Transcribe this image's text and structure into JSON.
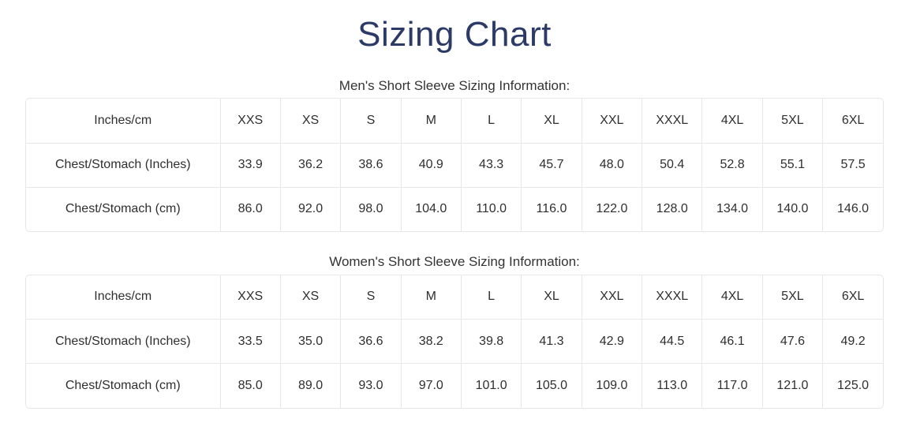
{
  "page": {
    "title": "Sizing Chart"
  },
  "colors": {
    "title_navy": "#2c3a67",
    "table_border": "#e7e7e7",
    "body_text": "#2f2f2f",
    "background": "#ffffff"
  },
  "tables": [
    {
      "caption": "Men's Short Sleeve Sizing Information:",
      "header": [
        "Inches/cm",
        "XXS",
        "XS",
        "S",
        "M",
        "L",
        "XL",
        "XXL",
        "XXXL",
        "4XL",
        "5XL",
        "6XL"
      ],
      "rows": [
        {
          "label": "Chest/Stomach (Inches)",
          "values": [
            "33.9",
            "36.2",
            "38.6",
            "40.9",
            "43.3",
            "45.7",
            "48.0",
            "50.4",
            "52.8",
            "55.1",
            "57.5"
          ]
        },
        {
          "label": "Chest/Stomach (cm)",
          "values": [
            "86.0",
            "92.0",
            "98.0",
            "104.0",
            "110.0",
            "116.0",
            "122.0",
            "128.0",
            "134.0",
            "140.0",
            "146.0"
          ]
        }
      ]
    },
    {
      "caption": "Women's Short Sleeve Sizing Information:",
      "header": [
        "Inches/cm",
        "XXS",
        "XS",
        "S",
        "M",
        "L",
        "XL",
        "XXL",
        "XXXL",
        "4XL",
        "5XL",
        "6XL"
      ],
      "rows": [
        {
          "label": "Chest/Stomach (Inches)",
          "values": [
            "33.5",
            "35.0",
            "36.6",
            "38.2",
            "39.8",
            "41.3",
            "42.9",
            "44.5",
            "46.1",
            "47.6",
            "49.2"
          ]
        },
        {
          "label": "Chest/Stomach (cm)",
          "values": [
            "85.0",
            "89.0",
            "93.0",
            "97.0",
            "101.0",
            "105.0",
            "109.0",
            "113.0",
            "117.0",
            "121.0",
            "125.0"
          ]
        }
      ]
    }
  ]
}
